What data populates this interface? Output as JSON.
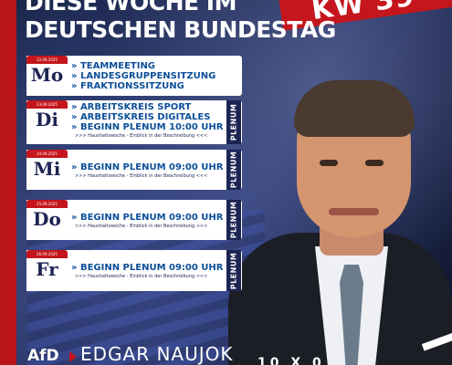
{
  "badge": "KW 39",
  "headline": {
    "line1": "DIESE WOCHE IM",
    "line2": "DEUTSCHEN BUNDESTAG"
  },
  "days": [
    {
      "short": "Mo",
      "date": "22.09.2025",
      "items": [
        "» TEAMMEETING",
        "» LANDESGRUPPENSITZUNG",
        "» FRAKTIONSSITZUNG"
      ],
      "note": "",
      "plenum": ""
    },
    {
      "short": "Di",
      "date": "23.09.2025",
      "items": [
        "» ARBEITSKREIS SPORT",
        "» ARBEITSKREIS DIGITALES",
        "» BEGINN PLENUM 10:00 UHR"
      ],
      "note": ">>> Haushaltswoche - Einblick in der Beschreibung <<<",
      "plenum": "PLENUM"
    },
    {
      "short": "Mi",
      "date": "24.09.2025",
      "items": [
        "» BEGINN PLENUM 09:00 UHR"
      ],
      "note": ">>> Haushaltswoche - Einblick in der Beschreibung <<<",
      "plenum": "PLENUM"
    },
    {
      "short": "Do",
      "date": "25.09.2025",
      "items": [
        "» BEGINN PLENUM 09:00 UHR"
      ],
      "note": ">>> Haushaltswoche - Einblick in der Beschreibung <<<",
      "plenum": "PLENUM"
    },
    {
      "short": "Fr",
      "date": "26.09.2025",
      "items": [
        "» BEGINN PLENUM 09:00 UHR"
      ],
      "note": ">>> Haushaltswoche - Einblick in der Beschreibung <<<",
      "plenum": "PLENUM"
    }
  ],
  "footer": {
    "party": "AfD",
    "name": "EDGAR NAUJOK",
    "mark": "10 X 0"
  }
}
